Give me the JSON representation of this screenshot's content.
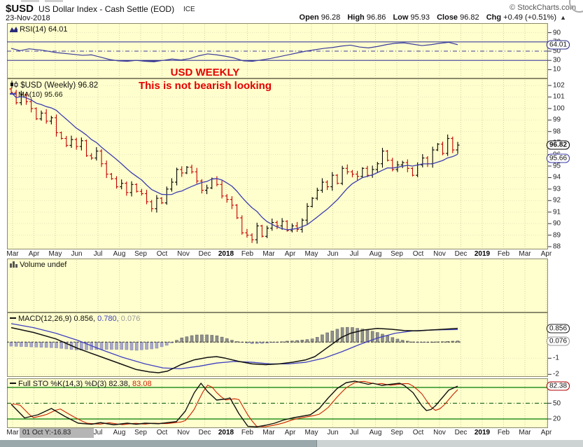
{
  "header": {
    "symbol": "$USD",
    "title": "US Dollar Index - Cash Settle (EOD)",
    "exchange": "ICE",
    "copyright": "© StockCharts.com",
    "date": "23-Nov-2018"
  },
  "quote": {
    "open_label": "Open",
    "open": "96.28",
    "high_label": "High",
    "high": "96.86",
    "low_label": "Low",
    "low": "95.93",
    "close_label": "Close",
    "close": "96.82",
    "chg_label": "Chg",
    "chg": "+0.49 (+0.51%)",
    "chg_arrow": "▲"
  },
  "annotation": {
    "line1": "USD WEEKLY",
    "line2": "This is not bearish looking"
  },
  "legends": {
    "rsi": "RSI(14) 64.01",
    "price": "$USD (Weekly) 96.82",
    "ma": "MA(10) 95.66",
    "volume": "Volume undef",
    "macd_name": "MACD(12,26,9)",
    "macd_v1": "0.856,",
    "macd_v2": "0.780,",
    "macd_v3": "0.076",
    "sto_name": "Full STO %K(14,3) %D(3)",
    "sto_v1": "82.38,",
    "sto_v2": "83.08"
  },
  "bubbles": {
    "rsi": "64.01",
    "price_close": "96.82",
    "price_ma": "95.66",
    "macd_main": "0.856",
    "macd_hist": "0.076",
    "sto": "82.38"
  },
  "scales": {
    "price": [
      102,
      101,
      100,
      99,
      98,
      97,
      96,
      95,
      94,
      93,
      92,
      91,
      90,
      89,
      88
    ],
    "rsi": [
      90,
      70,
      50,
      30,
      10
    ],
    "macd": [
      -1,
      -2
    ],
    "sto": [
      50,
      20
    ]
  },
  "axis": {
    "months": [
      "Mar",
      "Apr",
      "May",
      "Jun",
      "Jul",
      "Aug",
      "Sep",
      "Oct",
      "Nov",
      "Dec",
      "2018",
      "Feb",
      "Mar",
      "Apr",
      "May",
      "Jun",
      "Jul",
      "Aug",
      "Sep",
      "Oct",
      "Nov",
      "Dec",
      "2019",
      "Feb",
      "Mar",
      "Apr"
    ]
  },
  "footer": {
    "tooltip": "01 Oct Y:-16.83"
  },
  "colors": {
    "panel_bg": "#FFFFCE",
    "grid": "#cfcf9f",
    "grid_faint": "#e3e3bb",
    "rsi_line": "#3c3c9e",
    "up": "#000000",
    "down": "#c40000",
    "ma": "#3d3dae",
    "macd": "#111111",
    "signal": "#4040c0",
    "hist_pos": "#8f8f8f",
    "hist_neg": "#a8a8cc",
    "sto_k": "#111111",
    "sto_d": "#cc2200",
    "sto_level": "#007a00",
    "annotation": "#e40000"
  },
  "chart_data": [
    {
      "type": "line",
      "title": "RSI(14)",
      "last": 64.01,
      "ylim": [
        0,
        100
      ],
      "levels": {
        "overbought": 70,
        "midline": 50,
        "oversold": 30
      },
      "points": [
        [
          0,
          56
        ],
        [
          0.02,
          51
        ],
        [
          0.04,
          55
        ],
        [
          0.07,
          52
        ],
        [
          0.1,
          47
        ],
        [
          0.13,
          44
        ],
        [
          0.16,
          41
        ],
        [
          0.18,
          42
        ],
        [
          0.2,
          37
        ],
        [
          0.22,
          32
        ],
        [
          0.24,
          29
        ],
        [
          0.26,
          28
        ],
        [
          0.28,
          30
        ],
        [
          0.3,
          28
        ],
        [
          0.32,
          27
        ],
        [
          0.34,
          30
        ],
        [
          0.36,
          33
        ],
        [
          0.38,
          31
        ],
        [
          0.4,
          34
        ],
        [
          0.42,
          40
        ],
        [
          0.44,
          44
        ],
        [
          0.46,
          42
        ],
        [
          0.48,
          39
        ],
        [
          0.5,
          35
        ],
        [
          0.52,
          29
        ],
        [
          0.54,
          28
        ],
        [
          0.56,
          31
        ],
        [
          0.58,
          34
        ],
        [
          0.6,
          38
        ],
        [
          0.62,
          42
        ],
        [
          0.64,
          46
        ],
        [
          0.66,
          50
        ],
        [
          0.68,
          53
        ],
        [
          0.7,
          56
        ],
        [
          0.72,
          58
        ],
        [
          0.74,
          61
        ],
        [
          0.76,
          63
        ],
        [
          0.78,
          59
        ],
        [
          0.8,
          57
        ],
        [
          0.82,
          60
        ],
        [
          0.84,
          64
        ],
        [
          0.86,
          67
        ],
        [
          0.88,
          68
        ],
        [
          0.9,
          65
        ],
        [
          0.92,
          62
        ],
        [
          0.94,
          64
        ],
        [
          0.96,
          67
        ],
        [
          0.98,
          69
        ],
        [
          1,
          64
        ]
      ]
    },
    {
      "type": "ohlc",
      "title": "$USD Weekly",
      "last_close": 96.82,
      "ma10_last": 95.66,
      "ylim": [
        88,
        102.5
      ],
      "closes": [
        101.4,
        100.5,
        101.2,
        100.6,
        100.0,
        99.1,
        99.6,
        98.9,
        99.2,
        97.9,
        97.4,
        96.8,
        97.3,
        96.7,
        97.2,
        95.9,
        95.7,
        96.3,
        95.2,
        94.3,
        93.9,
        93.2,
        93.5,
        92.7,
        93.4,
        92.8,
        92.6,
        91.9,
        91.3,
        92.2,
        91.8,
        93.0,
        93.6,
        94.7,
        94.4,
        94.9,
        94.5,
        93.7,
        92.9,
        93.1,
        93.9,
        93.4,
        92.4,
        92.1,
        91.6,
        90.5,
        89.2,
        89.0,
        88.6,
        89.8,
        88.9,
        89.6,
        90.1,
        89.8,
        90.2,
        89.4,
        89.8,
        89.5,
        90.3,
        91.5,
        92.2,
        92.9,
        93.6,
        93.2,
        94.2,
        93.5,
        94.8,
        94.5,
        94.3,
        94.1,
        94.8,
        94.2,
        94.7,
        95.2,
        96.3,
        95.5,
        94.7,
        95.1,
        95.3,
        94.8,
        94.2,
        95.1,
        95.7,
        95.2,
        96.4,
        96.9,
        96.1,
        97.4,
        96.4,
        96.82
      ]
    },
    {
      "type": "bar",
      "title": "Volume",
      "values": [],
      "note": "undef"
    },
    {
      "type": "line",
      "title": "MACD(12,26,9)",
      "last": [
        0.856,
        0.78,
        0.076
      ],
      "ylim": [
        -2.3,
        1.3
      ],
      "macd": [
        [
          0,
          0.9
        ],
        [
          0.05,
          0.6
        ],
        [
          0.1,
          0.2
        ],
        [
          0.15,
          -0.4
        ],
        [
          0.2,
          -0.9
        ],
        [
          0.25,
          -1.4
        ],
        [
          0.28,
          -1.7
        ],
        [
          0.31,
          -1.85
        ],
        [
          0.33,
          -1.9
        ],
        [
          0.35,
          -1.8
        ],
        [
          0.38,
          -1.4
        ],
        [
          0.41,
          -1.1
        ],
        [
          0.44,
          -0.95
        ],
        [
          0.46,
          -0.9
        ],
        [
          0.48,
          -1.0
        ],
        [
          0.51,
          -1.2
        ],
        [
          0.54,
          -1.35
        ],
        [
          0.57,
          -1.4
        ],
        [
          0.6,
          -1.35
        ],
        [
          0.63,
          -1.25
        ],
        [
          0.66,
          -1.1
        ],
        [
          0.68,
          -0.9
        ],
        [
          0.7,
          -0.5
        ],
        [
          0.72,
          -0.1
        ],
        [
          0.74,
          0.3
        ],
        [
          0.76,
          0.55
        ],
        [
          0.79,
          0.75
        ],
        [
          0.82,
          0.85
        ],
        [
          0.85,
          0.8
        ],
        [
          0.88,
          0.72
        ],
        [
          0.91,
          0.7
        ],
        [
          0.94,
          0.75
        ],
        [
          0.97,
          0.8
        ],
        [
          1,
          0.856
        ]
      ],
      "signal": [
        [
          0,
          1.15
        ],
        [
          0.05,
          0.9
        ],
        [
          0.1,
          0.55
        ],
        [
          0.15,
          0.1
        ],
        [
          0.2,
          -0.45
        ],
        [
          0.25,
          -0.95
        ],
        [
          0.3,
          -1.35
        ],
        [
          0.34,
          -1.6
        ],
        [
          0.38,
          -1.65
        ],
        [
          0.42,
          -1.5
        ],
        [
          0.46,
          -1.3
        ],
        [
          0.5,
          -1.2
        ],
        [
          0.54,
          -1.25
        ],
        [
          0.58,
          -1.35
        ],
        [
          0.62,
          -1.35
        ],
        [
          0.66,
          -1.25
        ],
        [
          0.7,
          -1.0
        ],
        [
          0.74,
          -0.6
        ],
        [
          0.78,
          -0.15
        ],
        [
          0.82,
          0.25
        ],
        [
          0.86,
          0.55
        ],
        [
          0.9,
          0.7
        ],
        [
          0.94,
          0.75
        ],
        [
          0.97,
          0.77
        ],
        [
          1,
          0.78
        ]
      ],
      "hist_rule": "macd_minus_signal"
    },
    {
      "type": "line",
      "title": "Full STO %K(14,3) %D(3)",
      "last": [
        82.38,
        83.08
      ],
      "ylim": [
        0,
        100
      ],
      "levels": {
        "overbought": 80,
        "midline": 50,
        "oversold": 20
      },
      "k": [
        [
          0,
          48
        ],
        [
          0.03,
          22
        ],
        [
          0.06,
          28
        ],
        [
          0.09,
          40
        ],
        [
          0.12,
          25
        ],
        [
          0.15,
          12
        ],
        [
          0.18,
          10
        ],
        [
          0.2,
          13
        ],
        [
          0.23,
          9
        ],
        [
          0.26,
          12
        ],
        [
          0.28,
          10
        ],
        [
          0.3,
          12
        ],
        [
          0.33,
          11
        ],
        [
          0.35,
          13
        ],
        [
          0.37,
          15
        ],
        [
          0.39,
          35
        ],
        [
          0.41,
          70
        ],
        [
          0.425,
          88
        ],
        [
          0.44,
          72
        ],
        [
          0.46,
          56
        ],
        [
          0.48,
          58
        ],
        [
          0.49,
          60
        ],
        [
          0.51,
          30
        ],
        [
          0.53,
          6
        ],
        [
          0.55,
          5
        ],
        [
          0.57,
          8
        ],
        [
          0.59,
          12
        ],
        [
          0.61,
          18
        ],
        [
          0.63,
          22
        ],
        [
          0.65,
          25
        ],
        [
          0.67,
          28
        ],
        [
          0.69,
          40
        ],
        [
          0.71,
          60
        ],
        [
          0.73,
          78
        ],
        [
          0.75,
          89
        ],
        [
          0.77,
          92
        ],
        [
          0.79,
          88
        ],
        [
          0.8,
          86
        ],
        [
          0.81,
          88
        ],
        [
          0.83,
          84
        ],
        [
          0.85,
          86
        ],
        [
          0.87,
          88
        ],
        [
          0.88,
          84
        ],
        [
          0.9,
          70
        ],
        [
          0.92,
          45
        ],
        [
          0.93,
          36
        ],
        [
          0.94,
          38
        ],
        [
          0.95,
          45
        ],
        [
          0.96,
          55
        ],
        [
          0.97,
          65
        ],
        [
          0.98,
          75
        ],
        [
          1,
          82.4
        ]
      ],
      "d_rule": "k_lagged"
    }
  ]
}
